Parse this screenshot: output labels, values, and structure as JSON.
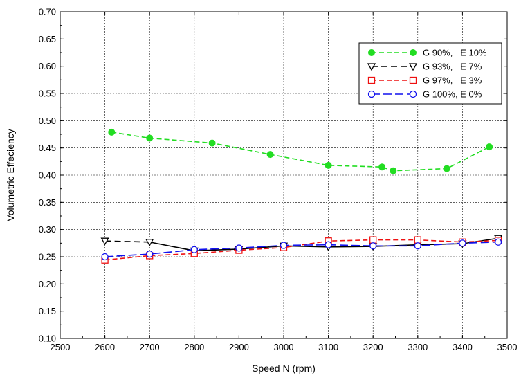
{
  "chart_data": {
    "type": "line",
    "title": "",
    "xlabel": "Speed N (rpm)",
    "ylabel": "Volumetric Effeciency",
    "xlim": [
      2500,
      3500
    ],
    "ylim": [
      0.1,
      0.7
    ],
    "xticks": [
      2500,
      2600,
      2700,
      2800,
      2900,
      3000,
      3100,
      3200,
      3300,
      3400,
      3500
    ],
    "yticks": [
      "0.10",
      "0.15",
      "0.20",
      "0.25",
      "0.30",
      "0.35",
      "0.40",
      "0.45",
      "0.50",
      "0.55",
      "0.60",
      "0.65",
      "0.70"
    ],
    "grid": "dashed",
    "legend_position": "top-right",
    "series": [
      {
        "name": "G 90%,   E 10%",
        "color": "#22dd22",
        "marker": "filled-circle",
        "line_style": "dashed",
        "x": [
          2615,
          2700,
          2840,
          2970,
          3100,
          3220,
          3245,
          3365,
          3460
        ],
        "y": [
          0.479,
          0.468,
          0.459,
          0.438,
          0.418,
          0.415,
          0.408,
          0.412,
          0.452
        ]
      },
      {
        "name": "G 93%,   E 7%",
        "color": "#000000",
        "marker": "open-triangle-down",
        "line_style": "dash-then-solid",
        "x": [
          2600,
          2700,
          2800,
          2900,
          3000,
          3100,
          3200,
          3300,
          3400,
          3480
        ],
        "y": [
          0.279,
          0.277,
          0.261,
          0.264,
          0.27,
          0.268,
          0.269,
          0.272,
          0.274,
          0.284
        ]
      },
      {
        "name": "G 97%,   E 3%",
        "color": "#ee1111",
        "marker": "open-square",
        "line_style": "dashed",
        "x": [
          2600,
          2700,
          2800,
          2900,
          3000,
          3100,
          3200,
          3300,
          3400,
          3480
        ],
        "y": [
          0.244,
          0.252,
          0.256,
          0.262,
          0.267,
          0.279,
          0.281,
          0.281,
          0.277,
          0.28
        ]
      },
      {
        "name": "G 100%, E 0%",
        "color": "#1111ee",
        "marker": "open-circle",
        "line_style": "long-dash",
        "x": [
          2600,
          2700,
          2800,
          2900,
          3000,
          3100,
          3200,
          3300,
          3400,
          3480
        ],
        "y": [
          0.25,
          0.255,
          0.263,
          0.266,
          0.271,
          0.272,
          0.27,
          0.27,
          0.275,
          0.277
        ]
      }
    ]
  }
}
